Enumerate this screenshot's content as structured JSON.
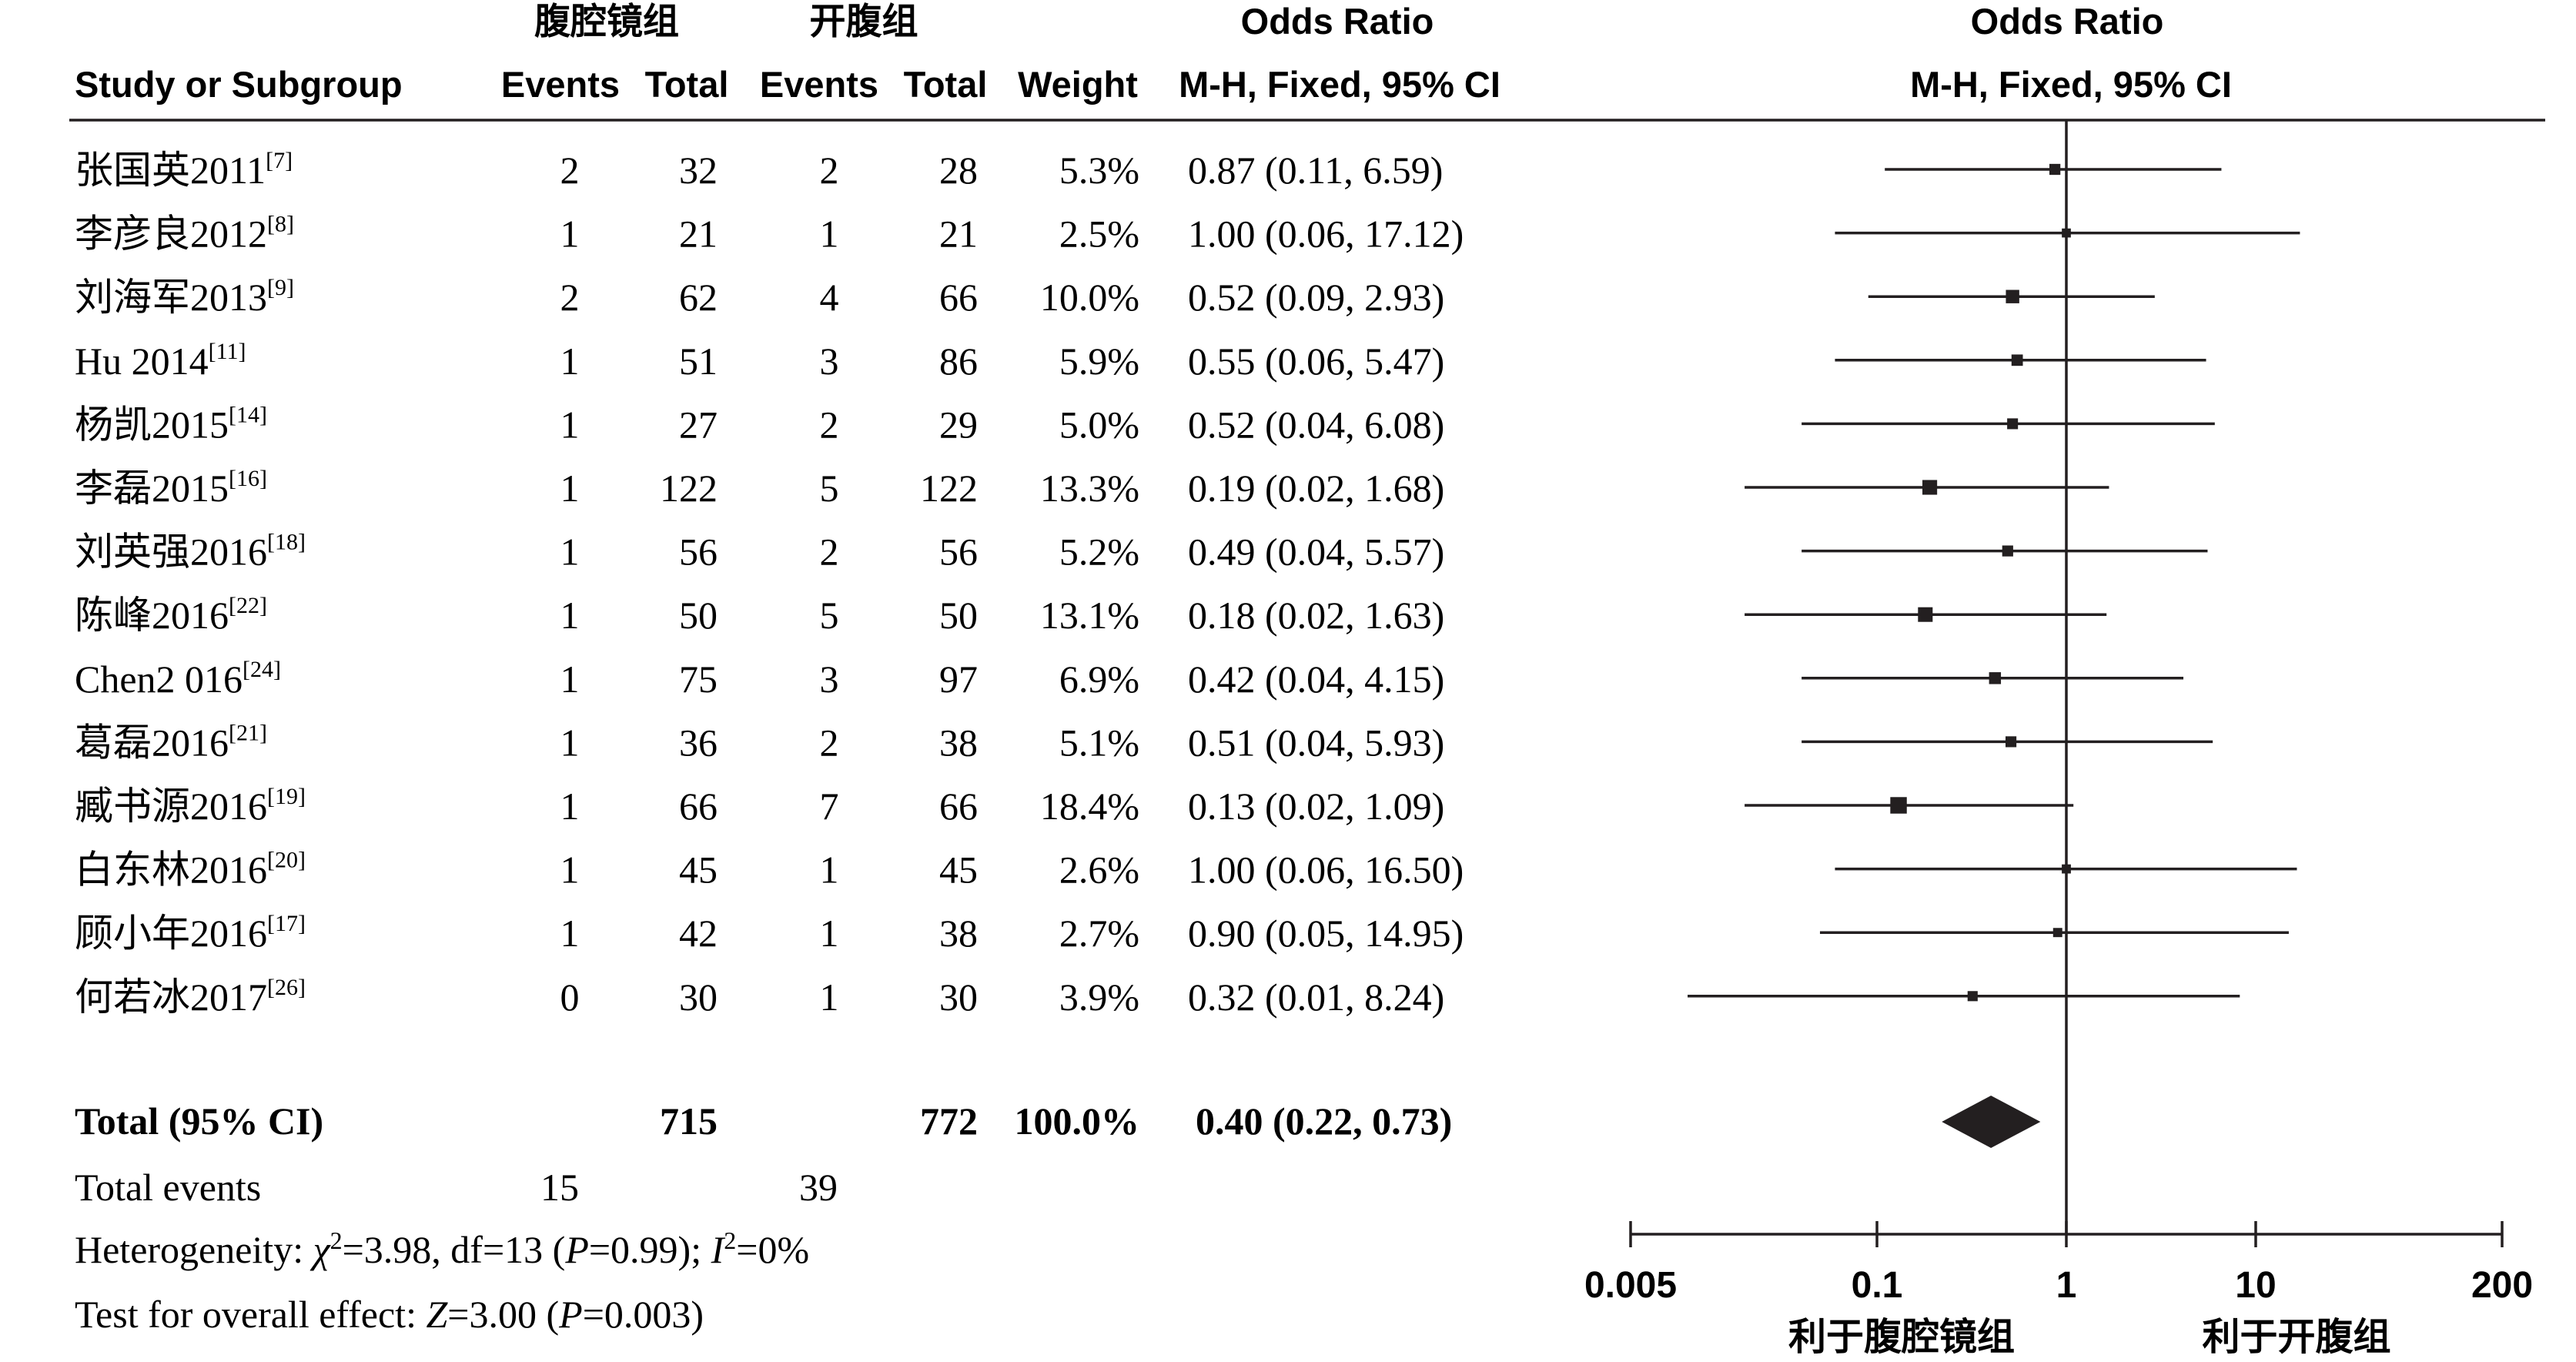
{
  "header": {
    "group1": "腹腔镜组",
    "group2": "开腹组",
    "or_left_title": "Odds Ratio",
    "or_right_title": "Odds Ratio",
    "study_or_subgroup": "Study or Subgroup",
    "events1": "Events",
    "total1": "Total",
    "events2": "Events",
    "total2": "Total",
    "weight": "Weight",
    "method_left": "M-H, Fixed, 95% CI",
    "method_right": "M-H, Fixed, 95% CI"
  },
  "studies": [
    {
      "name": "张国英2011",
      "ref": "[7]",
      "e1": "2",
      "t1": "32",
      "e2": "2",
      "t2": "28",
      "weight": "5.3%",
      "ci": "0.87 (0.11, 6.59)"
    },
    {
      "name": "李彦良2012",
      "ref": "[8]",
      "e1": "1",
      "t1": "21",
      "e2": "1",
      "t2": "21",
      "weight": "2.5%",
      "ci": "1.00 (0.06, 17.12)"
    },
    {
      "name": "刘海军2013",
      "ref": "[9]",
      "e1": "2",
      "t1": "62",
      "e2": "4",
      "t2": "66",
      "weight": "10.0%",
      "ci": "0.52 (0.09, 2.93)"
    },
    {
      "name": "Hu 2014",
      "ref": "[11]",
      "e1": "1",
      "t1": "51",
      "e2": "3",
      "t2": "86",
      "weight": "5.9%",
      "ci": "0.55 (0.06, 5.47)"
    },
    {
      "name": "杨凯2015",
      "ref": "[14]",
      "e1": "1",
      "t1": "27",
      "e2": "2",
      "t2": "29",
      "weight": "5.0%",
      "ci": "0.52 (0.04, 6.08)"
    },
    {
      "name": "李磊2015",
      "ref": "[16]",
      "e1": "1",
      "t1": "122",
      "e2": "5",
      "t2": "122",
      "weight": "13.3%",
      "ci": "0.19 (0.02, 1.68)"
    },
    {
      "name": "刘英强2016",
      "ref": "[18]",
      "e1": "1",
      "t1": "56",
      "e2": "2",
      "t2": "56",
      "weight": "5.2%",
      "ci": "0.49 (0.04, 5.57)"
    },
    {
      "name": "陈峰2016",
      "ref": "[22]",
      "e1": "1",
      "t1": "50",
      "e2": "5",
      "t2": "50",
      "weight": "13.1%",
      "ci": "0.18 (0.02, 1.63)"
    },
    {
      "name": "Chen2 016",
      "ref": "[24]",
      "e1": "1",
      "t1": "75",
      "e2": "3",
      "t2": "97",
      "weight": "6.9%",
      "ci": "0.42 (0.04, 4.15)"
    },
    {
      "name": "葛磊2016",
      "ref": "[21]",
      "e1": "1",
      "t1": "36",
      "e2": "2",
      "t2": "38",
      "weight": "5.1%",
      "ci": "0.51 (0.04, 5.93)"
    },
    {
      "name": "臧书源2016",
      "ref": "[19]",
      "e1": "1",
      "t1": "66",
      "e2": "7",
      "t2": "66",
      "weight": "18.4%",
      "ci": "0.13 (0.02, 1.09)"
    },
    {
      "name": "白东林2016",
      "ref": "[20]",
      "e1": "1",
      "t1": "45",
      "e2": "1",
      "t2": "45",
      "weight": "2.6%",
      "ci": "1.00 (0.06, 16.50)"
    },
    {
      "name": "顾小年2016",
      "ref": "[17]",
      "e1": "1",
      "t1": "42",
      "e2": "1",
      "t2": "38",
      "weight": "2.7%",
      "ci": "0.90 (0.05, 14.95)"
    },
    {
      "name": "何若冰2017",
      "ref": "[26]",
      "e1": "0",
      "t1": "30",
      "e2": "1",
      "t2": "30",
      "weight": "3.9%",
      "ci": "0.32 (0.01, 8.24)"
    }
  ],
  "total": {
    "label": "Total (95% CI)",
    "t1": "715",
    "t2": "772",
    "weight": "100.0%",
    "ci": "0.40 (0.22, 0.73)"
  },
  "total_events": {
    "label": "Total events",
    "e1": "15",
    "e2": "39"
  },
  "heterogeneity": {
    "prefix": "Heterogeneity: ",
    "chi": "χ",
    "chi_exp": "2",
    "chi_rest": "=3.98, df=13 (",
    "p": "P",
    "p_rest": "=0.99); ",
    "i": "I",
    "i_exp": "2",
    "i_rest": "=0%"
  },
  "overall": {
    "prefix": "Test for overall effect: ",
    "z": "Z",
    "z_rest": "=3.00 (",
    "p": "P",
    "p_rest": "=0.003)"
  },
  "axis": {
    "ticks": [
      "0.005",
      "0.1",
      "1",
      "10",
      "200"
    ],
    "favours_left": "利于腹腔镜组",
    "favours_right": "利于开腹组"
  },
  "chart_data": {
    "type": "forest",
    "scale": "log",
    "xlim": [
      0.005,
      200
    ],
    "reference_line": 1,
    "categories": [
      "张国英2011",
      "李彦良2012",
      "刘海军2013",
      "Hu 2014",
      "杨凯2015",
      "李磊2015",
      "刘英强2016",
      "陈峰2016",
      "Chen2 016",
      "葛磊2016",
      "臧书源2016",
      "白东林2016",
      "顾小年2016",
      "何若冰2017"
    ],
    "or": [
      0.87,
      1.0,
      0.52,
      0.55,
      0.52,
      0.19,
      0.49,
      0.18,
      0.42,
      0.51,
      0.13,
      1.0,
      0.9,
      0.32
    ],
    "lower": [
      0.11,
      0.06,
      0.09,
      0.06,
      0.04,
      0.02,
      0.04,
      0.02,
      0.04,
      0.04,
      0.02,
      0.06,
      0.05,
      0.01
    ],
    "upper": [
      6.59,
      17.12,
      2.93,
      5.47,
      6.08,
      1.68,
      5.57,
      1.63,
      4.15,
      5.93,
      1.09,
      16.5,
      14.95,
      8.24
    ],
    "weight": [
      5.3,
      2.5,
      10.0,
      5.9,
      5.0,
      13.3,
      5.2,
      13.1,
      6.9,
      5.1,
      18.4,
      2.6,
      2.7,
      3.9
    ],
    "pooled": {
      "or": 0.4,
      "lower": 0.22,
      "upper": 0.73
    }
  }
}
